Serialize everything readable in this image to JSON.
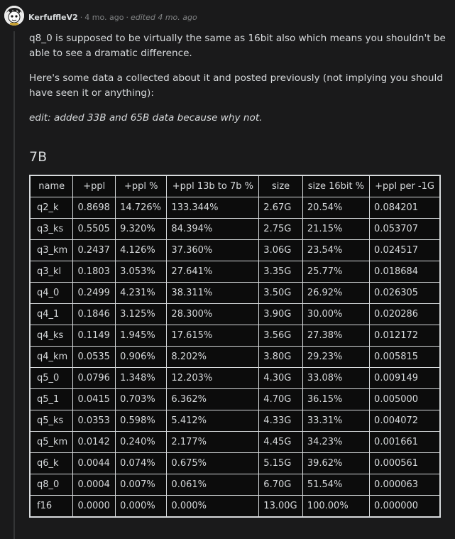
{
  "comment": {
    "username": "KerfuffleV2",
    "time": "4 mo. ago",
    "edited": "edited 4 mo. ago",
    "paragraphs": [
      "q8_0 is supposed to be virtually the same as 16bit also which means you shouldn't be able to see a dramatic difference.",
      "Here's some data a collected about it and posted previously (not implying you should have seen it or anything):",
      "edit: added 33B and 65B data because why not."
    ],
    "heading": "7B"
  },
  "table": {
    "headers": [
      "name",
      "+ppl",
      "+ppl %",
      "+ppl 13b to 7b %",
      "size",
      "size 16bit %",
      "+ppl per -1G"
    ],
    "rows": [
      [
        "q2_k",
        "0.8698",
        "14.726%",
        "133.344%",
        "2.67G",
        "20.54%",
        "0.084201"
      ],
      [
        "q3_ks",
        "0.5505",
        "9.320%",
        "84.394%",
        "2.75G",
        "21.15%",
        "0.053707"
      ],
      [
        "q3_km",
        "0.2437",
        "4.126%",
        "37.360%",
        "3.06G",
        "23.54%",
        "0.024517"
      ],
      [
        "q3_kl",
        "0.1803",
        "3.053%",
        "27.641%",
        "3.35G",
        "25.77%",
        "0.018684"
      ],
      [
        "q4_0",
        "0.2499",
        "4.231%",
        "38.311%",
        "3.50G",
        "26.92%",
        "0.026305"
      ],
      [
        "q4_1",
        "0.1846",
        "3.125%",
        "28.300%",
        "3.90G",
        "30.00%",
        "0.020286"
      ],
      [
        "q4_ks",
        "0.1149",
        "1.945%",
        "17.615%",
        "3.56G",
        "27.38%",
        "0.012172"
      ],
      [
        "q4_km",
        "0.0535",
        "0.906%",
        "8.202%",
        "3.80G",
        "29.23%",
        "0.005815"
      ],
      [
        "q5_0",
        "0.0796",
        "1.348%",
        "12.203%",
        "4.30G",
        "33.08%",
        "0.009149"
      ],
      [
        "q5_1",
        "0.0415",
        "0.703%",
        "6.362%",
        "4.70G",
        "36.15%",
        "0.005000"
      ],
      [
        "q5_ks",
        "0.0353",
        "0.598%",
        "5.412%",
        "4.33G",
        "33.31%",
        "0.004072"
      ],
      [
        "q5_km",
        "0.0142",
        "0.240%",
        "2.177%",
        "4.45G",
        "34.23%",
        "0.001661"
      ],
      [
        "q6_k",
        "0.0044",
        "0.074%",
        "0.675%",
        "5.15G",
        "39.62%",
        "0.000561"
      ],
      [
        "q8_0",
        "0.0004",
        "0.007%",
        "0.061%",
        "6.70G",
        "51.54%",
        "0.000063"
      ],
      [
        "f16",
        "0.0000",
        "0.000%",
        "0.000%",
        "13.00G",
        "100.00%",
        "0.000000"
      ]
    ]
  },
  "icons": {
    "avatar": "cartoon-avatar-icon"
  },
  "colors": {
    "background": "#1a1a1b",
    "text": "#d7dadc",
    "meta": "#818384",
    "table_bg": "#0c0c0c"
  }
}
